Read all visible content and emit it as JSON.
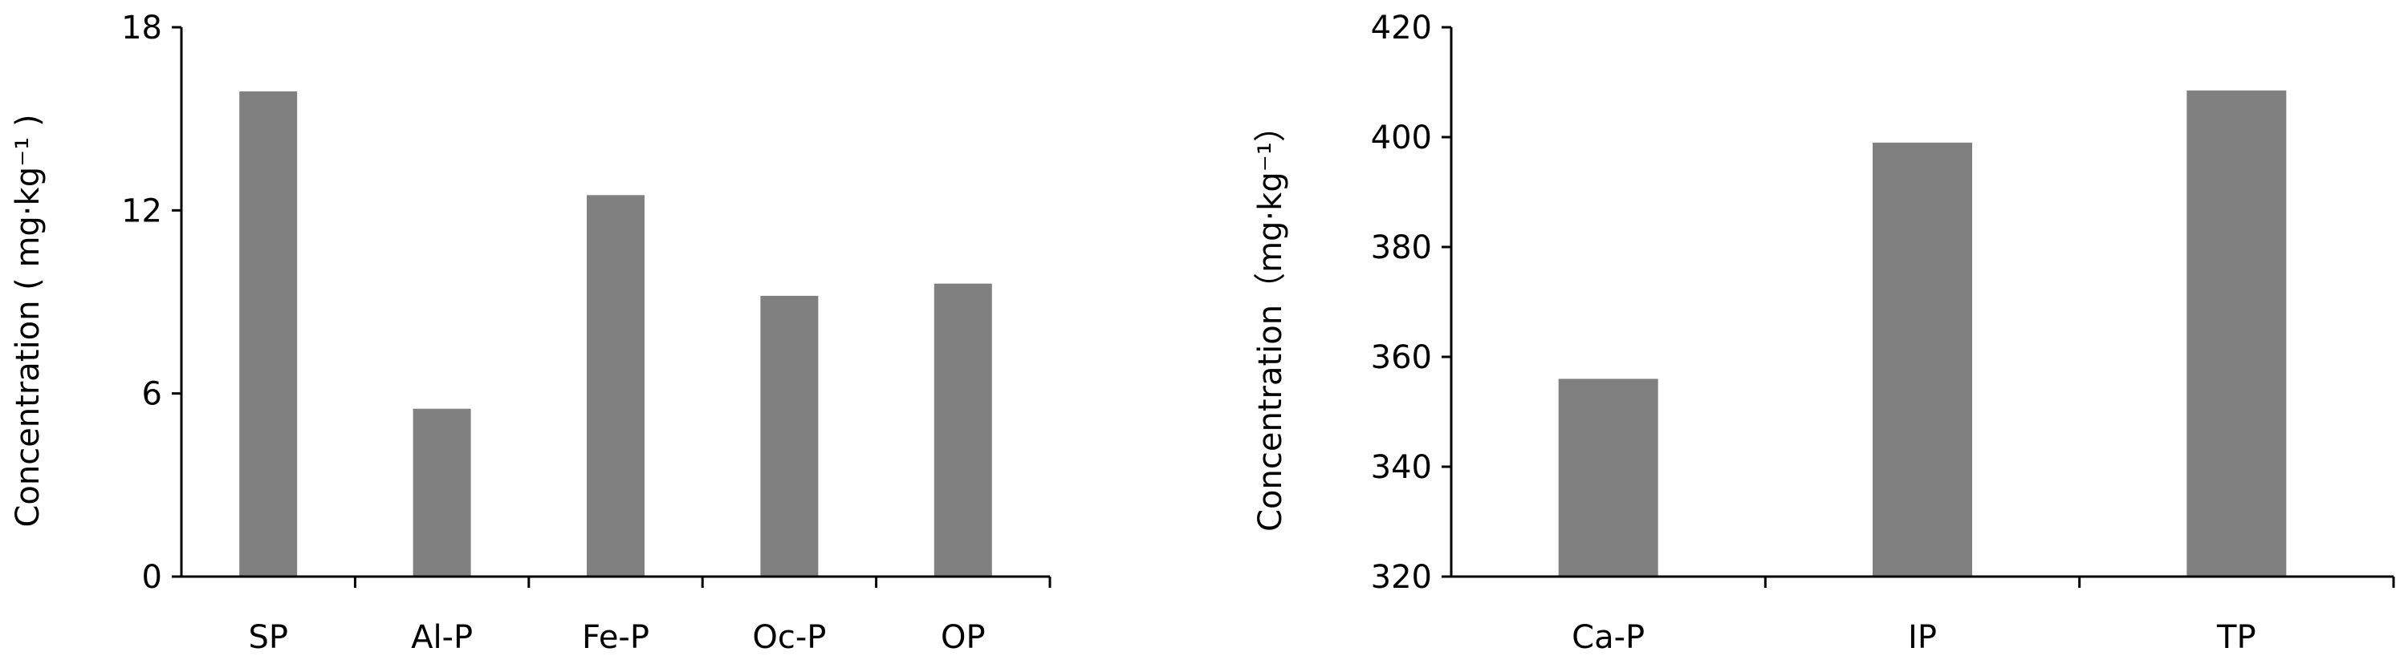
{
  "chart_data": [
    {
      "type": "bar",
      "categories": [
        "SP",
        "Al-P",
        "Fe-P",
        "Oc-P",
        "OP"
      ],
      "values": [
        15.9,
        5.5,
        12.5,
        9.2,
        9.6
      ],
      "ylabel": "Concentration ( mg·kg⁻¹ )",
      "xlabel": "",
      "ylim": [
        0,
        18
      ],
      "yticks": [
        "0",
        "6",
        "12",
        "18"
      ],
      "grid": false,
      "legend": "none",
      "bar_color": "#808080"
    },
    {
      "type": "bar",
      "categories": [
        "Ca-P",
        "IP",
        "TP"
      ],
      "values": [
        356,
        399,
        408.5
      ],
      "ylabel": "Concentration（mg·kg⁻¹）",
      "xlabel": "",
      "ylim": [
        320,
        420
      ],
      "yticks": [
        "320",
        "340",
        "360",
        "380",
        "400",
        "420"
      ],
      "grid": false,
      "legend": "none",
      "bar_color": "#808080"
    }
  ]
}
